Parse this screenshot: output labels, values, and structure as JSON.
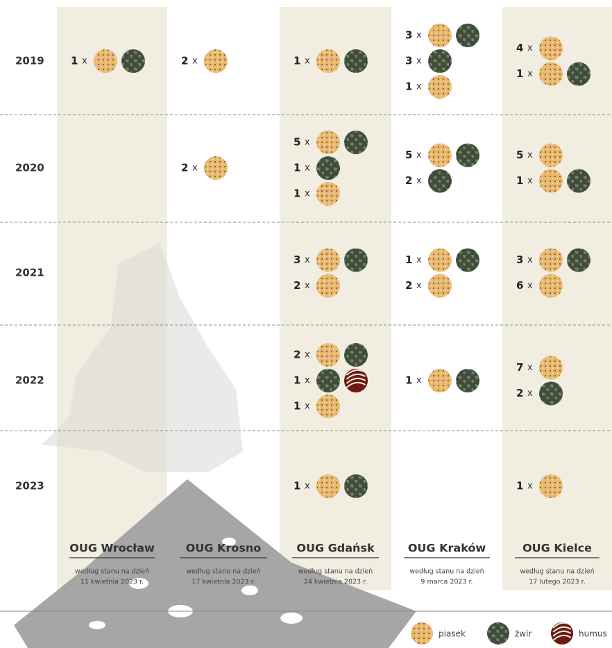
{
  "columns": [
    {
      "name": "OUG Wrocław",
      "note": "według stanu na dzień",
      "date": "11 kwietnia 2023 r."
    },
    {
      "name": "OUG Krosno",
      "note": "według stanu na dzień",
      "date": "17 kwietnia 2023 r."
    },
    {
      "name": "OUG Gdańsk",
      "note": "według stanu na dzień",
      "date": "24 kwietnia 2023 r."
    },
    {
      "name": "OUG Kraków",
      "note": "według stanu na dzień",
      "date": "9 marca 2023 r."
    },
    {
      "name": "OUG Kielce",
      "note": "według stanu na dzień",
      "date": "17 lutego 2023 r."
    }
  ],
  "multiplier_sign": "x",
  "rows": [
    {
      "year": "2019",
      "cells": [
        [
          {
            "count": 1,
            "materials": [
              "piasek",
              "żwir"
            ]
          }
        ],
        [
          {
            "count": 2,
            "materials": [
              "piasek"
            ]
          }
        ],
        [
          {
            "count": 1,
            "materials": [
              "piasek",
              "żwir"
            ]
          }
        ],
        [
          {
            "count": 3,
            "materials": [
              "piasek",
              "żwir"
            ]
          },
          {
            "count": 3,
            "materials": [
              "żwir"
            ]
          },
          {
            "count": 1,
            "materials": [
              "piasek"
            ]
          }
        ],
        [
          {
            "count": 4,
            "materials": [
              "piasek"
            ]
          },
          {
            "count": 1,
            "materials": [
              "piasek",
              "żwir"
            ]
          }
        ]
      ]
    },
    {
      "year": "2020",
      "cells": [
        [],
        [
          {
            "count": 2,
            "materials": [
              "piasek"
            ]
          }
        ],
        [
          {
            "count": 5,
            "materials": [
              "piasek",
              "żwir"
            ]
          },
          {
            "count": 1,
            "materials": [
              "żwir"
            ]
          },
          {
            "count": 1,
            "materials": [
              "piasek"
            ]
          }
        ],
        [
          {
            "count": 5,
            "materials": [
              "piasek",
              "żwir"
            ]
          },
          {
            "count": 2,
            "materials": [
              "żwir"
            ]
          }
        ],
        [
          {
            "count": 5,
            "materials": [
              "piasek"
            ]
          },
          {
            "count": 1,
            "materials": [
              "piasek",
              "żwir"
            ]
          }
        ]
      ]
    },
    {
      "year": "2021",
      "cells": [
        [],
        [],
        [
          {
            "count": 3,
            "materials": [
              "piasek",
              "żwir"
            ]
          },
          {
            "count": 2,
            "materials": [
              "piasek"
            ]
          }
        ],
        [
          {
            "count": 1,
            "materials": [
              "piasek",
              "żwir"
            ]
          },
          {
            "count": 2,
            "materials": [
              "piasek"
            ]
          }
        ],
        [
          {
            "count": 3,
            "materials": [
              "piasek",
              "żwir"
            ]
          },
          {
            "count": 6,
            "materials": [
              "piasek"
            ]
          }
        ]
      ]
    },
    {
      "year": "2022",
      "cells": [
        [],
        [],
        [
          {
            "count": 2,
            "materials": [
              "piasek",
              "żwir"
            ]
          },
          {
            "count": 1,
            "materials": [
              "żwir",
              "humus"
            ]
          },
          {
            "count": 1,
            "materials": [
              "piasek"
            ]
          }
        ],
        [
          {
            "count": 1,
            "materials": [
              "piasek",
              "żwir"
            ]
          }
        ],
        [
          {
            "count": 7,
            "materials": [
              "piasek"
            ]
          },
          {
            "count": 2,
            "materials": [
              "żwir"
            ]
          }
        ]
      ]
    },
    {
      "year": "2023",
      "cells": [
        [],
        [],
        [
          {
            "count": 1,
            "materials": [
              "piasek",
              "żwir"
            ]
          }
        ],
        [],
        [
          {
            "count": 1,
            "materials": [
              "piasek"
            ]
          }
        ]
      ]
    }
  ],
  "legend": [
    "piasek",
    "żwir",
    "humus"
  ]
}
